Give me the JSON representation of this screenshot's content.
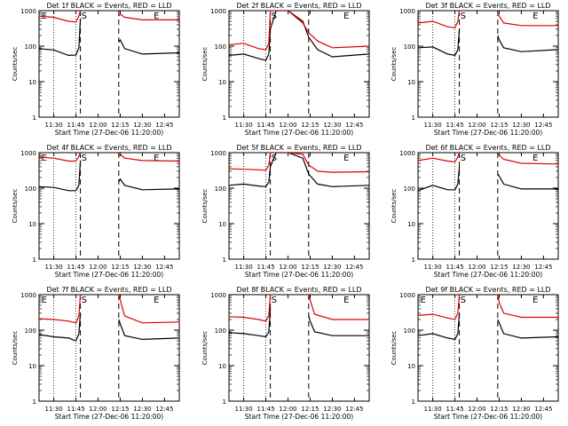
{
  "chart_data": [
    {
      "type": "line",
      "title": "Det 1f BLACK = Events, RED = LLD",
      "xlabel": "Start Time (27-Dec-06 11:20:00)",
      "ylabel": "Counts/sec",
      "yscale": "log",
      "ylim": [
        1,
        1000
      ],
      "xlim": [
        "11:20",
        "12:55"
      ],
      "x_ticks": [
        "11:30",
        "11:45",
        "12:00",
        "12:15",
        "12:30",
        "12:45"
      ],
      "y_ticks": [
        "1",
        "10",
        "100",
        "1000"
      ],
      "vlines_dotted": [
        "11:30",
        "11:45"
      ],
      "vlines_dashed": [
        "11:48",
        "12:14"
      ],
      "markers": [
        {
          "label": "E",
          "at": "11:21"
        },
        {
          "label": "S",
          "at": "11:48"
        },
        {
          "label": "E",
          "at": "12:37"
        }
      ],
      "gap": [
        "11:48",
        "12:14"
      ],
      "series": [
        {
          "color": "#000000",
          "x": [
            "11:20",
            "11:30",
            "11:40",
            "11:45",
            "11:47",
            "11:48",
            "12:14",
            "12:15",
            "12:18",
            "12:30",
            "12:55"
          ],
          "values": [
            85,
            78,
            55,
            56,
            90,
            600,
            130,
            150,
            85,
            60,
            65
          ]
        },
        {
          "color": "#dd0000",
          "x": [
            "11:20",
            "11:30",
            "11:40",
            "11:45",
            "11:47",
            "11:48",
            "12:14",
            "12:15",
            "12:18",
            "12:30",
            "12:55"
          ],
          "values": [
            700,
            650,
            500,
            480,
            700,
            1000,
            700,
            800,
            650,
            550,
            550
          ]
        }
      ]
    },
    {
      "type": "line",
      "title": "Det 2f BLACK = Events, RED = LLD",
      "xlabel": "Start Time (27-Dec-06 11:20:00)",
      "ylabel": "Counts/sec",
      "yscale": "log",
      "ylim": [
        1,
        1000
      ],
      "xlim": [
        "11:20",
        "12:55"
      ],
      "x_ticks": [
        "11:30",
        "11:45",
        "12:00",
        "12:15",
        "12:30",
        "12:45"
      ],
      "y_ticks": [
        "1",
        "10",
        "100",
        "1000"
      ],
      "vlines_dotted": [
        "11:30",
        "11:45"
      ],
      "vlines_dashed": [
        "11:48",
        "12:14"
      ],
      "markers": [
        {
          "label": "S",
          "at": "11:48"
        },
        {
          "label": "E",
          "at": "12:37"
        }
      ],
      "gap": [],
      "series": [
        {
          "color": "#000000",
          "x": [
            "11:20",
            "11:30",
            "11:40",
            "11:45",
            "11:47",
            "11:48",
            "11:52",
            "12:00",
            "12:10",
            "12:14",
            "12:20",
            "12:30",
            "12:55"
          ],
          "values": [
            55,
            60,
            45,
            40,
            60,
            300,
            1000,
            1000,
            500,
            180,
            80,
            50,
            60
          ]
        },
        {
          "color": "#dd0000",
          "x": [
            "11:20",
            "11:30",
            "11:40",
            "11:45",
            "11:47",
            "11:48",
            "11:52",
            "12:00",
            "12:10",
            "12:14",
            "12:20",
            "12:30",
            "12:55"
          ],
          "values": [
            110,
            120,
            85,
            80,
            120,
            1000,
            1000,
            1000,
            450,
            240,
            140,
            90,
            100
          ]
        }
      ]
    },
    {
      "type": "line",
      "title": "Det 3f BLACK = Events, RED = LLD",
      "xlabel": "Start Time (27-Dec-06 11:20:00)",
      "ylabel": "Counts/sec",
      "yscale": "log",
      "ylim": [
        1,
        1000
      ],
      "xlim": [
        "11:20",
        "12:55"
      ],
      "x_ticks": [
        "11:30",
        "11:45",
        "12:00",
        "12:15",
        "12:30",
        "12:45"
      ],
      "y_ticks": [
        "1",
        "10",
        "100",
        "1000"
      ],
      "vlines_dotted": [
        "11:30",
        "11:45"
      ],
      "vlines_dashed": [
        "11:48",
        "12:14"
      ],
      "markers": [
        {
          "label": "S",
          "at": "11:48"
        },
        {
          "label": "E",
          "at": "12:37"
        }
      ],
      "gap": [
        "11:48",
        "12:14"
      ],
      "series": [
        {
          "color": "#000000",
          "x": [
            "11:20",
            "11:30",
            "11:40",
            "11:45",
            "11:47",
            "11:48",
            "12:14",
            "12:15",
            "12:18",
            "12:30",
            "12:55"
          ],
          "values": [
            90,
            95,
            60,
            55,
            80,
            300,
            200,
            150,
            90,
            70,
            80
          ]
        },
        {
          "color": "#dd0000",
          "x": [
            "11:20",
            "11:30",
            "11:40",
            "11:45",
            "11:47",
            "11:48",
            "12:14",
            "12:15",
            "12:18",
            "12:30",
            "12:55"
          ],
          "values": [
            450,
            500,
            350,
            330,
            500,
            1000,
            800,
            700,
            450,
            380,
            380
          ]
        }
      ]
    },
    {
      "type": "line",
      "title": "Det 4f BLACK = Events, RED = LLD",
      "xlabel": "Start Time (27-Dec-06 11:20:00)",
      "ylabel": "Counts/sec",
      "yscale": "log",
      "ylim": [
        1,
        1000
      ],
      "xlim": [
        "11:20",
        "12:55"
      ],
      "x_ticks": [
        "11:30",
        "11:45",
        "12:00",
        "12:15",
        "12:30",
        "12:45"
      ],
      "y_ticks": [
        "1",
        "10",
        "100",
        "1000"
      ],
      "vlines_dotted": [
        "11:30",
        "11:45"
      ],
      "vlines_dashed": [
        "11:48",
        "12:14"
      ],
      "markers": [
        {
          "label": "E",
          "at": "11:21"
        },
        {
          "label": "S",
          "at": "11:48"
        },
        {
          "label": "E",
          "at": "12:37"
        }
      ],
      "gap": [
        "11:48",
        "12:14"
      ],
      "series": [
        {
          "color": "#000000",
          "x": [
            "11:20",
            "11:30",
            "11:40",
            "11:45",
            "11:47",
            "11:48",
            "12:14",
            "12:15",
            "12:18",
            "12:30",
            "12:55"
          ],
          "values": [
            110,
            105,
            85,
            85,
            120,
            600,
            150,
            180,
            120,
            90,
            95
          ]
        },
        {
          "color": "#dd0000",
          "x": [
            "11:20",
            "11:30",
            "11:40",
            "11:45",
            "11:47",
            "11:48",
            "12:14",
            "12:15",
            "12:18",
            "12:30",
            "12:55"
          ],
          "values": [
            750,
            700,
            580,
            580,
            800,
            1000,
            800,
            900,
            700,
            600,
            580
          ]
        }
      ]
    },
    {
      "type": "line",
      "title": "Det 5f BLACK = Events, RED = LLD",
      "xlabel": "Start Time (27-Dec-06 11:20:00)",
      "ylabel": "Counts/sec",
      "yscale": "log",
      "ylim": [
        1,
        1000
      ],
      "xlim": [
        "11:20",
        "12:55"
      ],
      "x_ticks": [
        "11:30",
        "11:45",
        "12:00",
        "12:15",
        "12:30",
        "12:45"
      ],
      "y_ticks": [
        "1",
        "10",
        "100",
        "1000"
      ],
      "vlines_dotted": [
        "11:30",
        "11:45"
      ],
      "vlines_dashed": [
        "11:48",
        "12:14"
      ],
      "markers": [
        {
          "label": "S",
          "at": "11:48"
        },
        {
          "label": "E",
          "at": "12:37"
        }
      ],
      "gap": [],
      "series": [
        {
          "color": "#000000",
          "x": [
            "11:20",
            "11:30",
            "11:40",
            "11:45",
            "11:47",
            "11:48",
            "11:52",
            "12:00",
            "12:10",
            "12:14",
            "12:20",
            "12:30",
            "12:55"
          ],
          "values": [
            120,
            130,
            115,
            110,
            150,
            400,
            1000,
            1000,
            700,
            250,
            130,
            110,
            120
          ]
        },
        {
          "color": "#dd0000",
          "x": [
            "11:20",
            "11:30",
            "11:40",
            "11:45",
            "11:47",
            "11:48",
            "11:52",
            "12:00",
            "12:10",
            "12:14",
            "12:20",
            "12:30",
            "12:55"
          ],
          "values": [
            350,
            340,
            330,
            320,
            450,
            1000,
            1000,
            1000,
            900,
            450,
            300,
            280,
            290
          ]
        }
      ]
    },
    {
      "type": "line",
      "title": "Det 6f BLACK = Events, RED = LLD",
      "xlabel": "Start Time (27-Dec-06 11:20:00)",
      "ylabel": "Counts/sec",
      "yscale": "log",
      "ylim": [
        1,
        1000
      ],
      "xlim": [
        "11:20",
        "12:55"
      ],
      "x_ticks": [
        "11:30",
        "11:45",
        "12:00",
        "12:15",
        "12:30",
        "12:45"
      ],
      "y_ticks": [
        "1",
        "10",
        "100",
        "1000"
      ],
      "vlines_dotted": [
        "11:30",
        "11:45"
      ],
      "vlines_dashed": [
        "11:48",
        "12:14"
      ],
      "markers": [
        {
          "label": "S",
          "at": "11:48"
        },
        {
          "label": "E",
          "at": "12:37"
        }
      ],
      "gap": [
        "11:48",
        "12:14"
      ],
      "series": [
        {
          "color": "#000000",
          "x": [
            "11:20",
            "11:30",
            "11:40",
            "11:45",
            "11:47",
            "11:48",
            "12:14",
            "12:15",
            "12:18",
            "12:30",
            "12:55"
          ],
          "values": [
            85,
            120,
            90,
            90,
            130,
            400,
            250,
            220,
            130,
            95,
            95
          ]
        },
        {
          "color": "#dd0000",
          "x": [
            "11:20",
            "11:30",
            "11:40",
            "11:45",
            "11:47",
            "11:48",
            "12:14",
            "12:15",
            "12:18",
            "12:30",
            "12:55"
          ],
          "values": [
            600,
            700,
            580,
            550,
            750,
            1000,
            900,
            850,
            650,
            500,
            480
          ]
        }
      ]
    },
    {
      "type": "line",
      "title": "Det 7f BLACK = Events, RED = LLD",
      "xlabel": "Start Time (27-Dec-06 11:20:00)",
      "ylabel": "Counts/sec",
      "yscale": "log",
      "ylim": [
        1,
        1000
      ],
      "xlim": [
        "11:20",
        "12:55"
      ],
      "x_ticks": [
        "11:30",
        "11:45",
        "12:00",
        "12:15",
        "12:30",
        "12:45"
      ],
      "y_ticks": [
        "1",
        "10",
        "100",
        "1000"
      ],
      "vlines_dotted": [
        "11:30",
        "11:45"
      ],
      "vlines_dashed": [
        "11:48",
        "12:14"
      ],
      "markers": [
        {
          "label": "E",
          "at": "11:21"
        },
        {
          "label": "S",
          "at": "11:48"
        },
        {
          "label": "E",
          "at": "12:37"
        }
      ],
      "gap": [
        "11:48",
        "12:14"
      ],
      "series": [
        {
          "color": "#000000",
          "x": [
            "11:20",
            "11:30",
            "11:40",
            "11:45",
            "11:47",
            "11:48",
            "12:14",
            "12:15",
            "12:18",
            "12:30",
            "12:55"
          ],
          "values": [
            75,
            65,
            60,
            50,
            80,
            300,
            200,
            150,
            70,
            55,
            60
          ]
        },
        {
          "color": "#dd0000",
          "x": [
            "11:20",
            "11:30",
            "11:40",
            "11:45",
            "11:47",
            "11:48",
            "12:14",
            "12:15",
            "12:18",
            "12:30",
            "12:55"
          ],
          "values": [
            210,
            200,
            180,
            160,
            250,
            1000,
            1000,
            700,
            250,
            160,
            170
          ]
        }
      ]
    },
    {
      "type": "line",
      "title": "Det 8f BLACK = Events, RED = LLD",
      "xlabel": "Start Time (27-Dec-06 11:20:00)",
      "ylabel": "Counts/sec",
      "yscale": "log",
      "ylim": [
        1,
        1000
      ],
      "xlim": [
        "11:20",
        "12:55"
      ],
      "x_ticks": [
        "11:30",
        "11:45",
        "12:00",
        "12:15",
        "12:30",
        "12:45"
      ],
      "y_ticks": [
        "1",
        "10",
        "100",
        "1000"
      ],
      "vlines_dotted": [
        "11:30",
        "11:45"
      ],
      "vlines_dashed": [
        "11:48",
        "12:14"
      ],
      "markers": [
        {
          "label": "S",
          "at": "11:48"
        },
        {
          "label": "E",
          "at": "12:37"
        }
      ],
      "gap": [
        "11:48",
        "12:14"
      ],
      "series": [
        {
          "color": "#000000",
          "x": [
            "11:20",
            "11:30",
            "11:40",
            "11:45",
            "11:47",
            "11:48",
            "12:14",
            "12:15",
            "12:18",
            "12:30",
            "12:55"
          ],
          "values": [
            85,
            80,
            70,
            65,
            90,
            400,
            250,
            180,
            90,
            70,
            70
          ]
        },
        {
          "color": "#dd0000",
          "x": [
            "11:20",
            "11:30",
            "11:40",
            "11:45",
            "11:47",
            "11:48",
            "12:14",
            "12:15",
            "12:18",
            "12:30",
            "12:55"
          ],
          "values": [
            240,
            230,
            200,
            180,
            260,
            1000,
            1000,
            700,
            280,
            200,
            200
          ]
        }
      ]
    },
    {
      "type": "line",
      "title": "Det 9f BLACK = Events, RED = LLD",
      "xlabel": "Start Time (27-Dec-06 11:20:00)",
      "ylabel": "Counts/sec",
      "yscale": "log",
      "ylim": [
        1,
        1000
      ],
      "xlim": [
        "11:20",
        "12:55"
      ],
      "x_ticks": [
        "11:30",
        "11:45",
        "12:00",
        "12:15",
        "12:30",
        "12:45"
      ],
      "y_ticks": [
        "1",
        "10",
        "100",
        "1000"
      ],
      "vlines_dotted": [
        "11:30",
        "11:45"
      ],
      "vlines_dashed": [
        "11:48",
        "12:14"
      ],
      "markers": [
        {
          "label": "E",
          "at": "11:21"
        },
        {
          "label": "S",
          "at": "11:48"
        },
        {
          "label": "E",
          "at": "12:37"
        }
      ],
      "gap": [
        "11:48",
        "12:14"
      ],
      "series": [
        {
          "color": "#000000",
          "x": [
            "11:20",
            "11:30",
            "11:40",
            "11:45",
            "11:47",
            "11:48",
            "12:14",
            "12:15",
            "12:18",
            "12:30",
            "12:55"
          ],
          "values": [
            70,
            80,
            60,
            55,
            80,
            300,
            200,
            160,
            80,
            60,
            65
          ]
        },
        {
          "color": "#dd0000",
          "x": [
            "11:20",
            "11:30",
            "11:40",
            "11:45",
            "11:47",
            "11:48",
            "12:14",
            "12:15",
            "12:18",
            "12:30",
            "12:55"
          ],
          "values": [
            260,
            280,
            220,
            200,
            300,
            1000,
            1000,
            600,
            300,
            230,
            230
          ]
        }
      ]
    }
  ]
}
